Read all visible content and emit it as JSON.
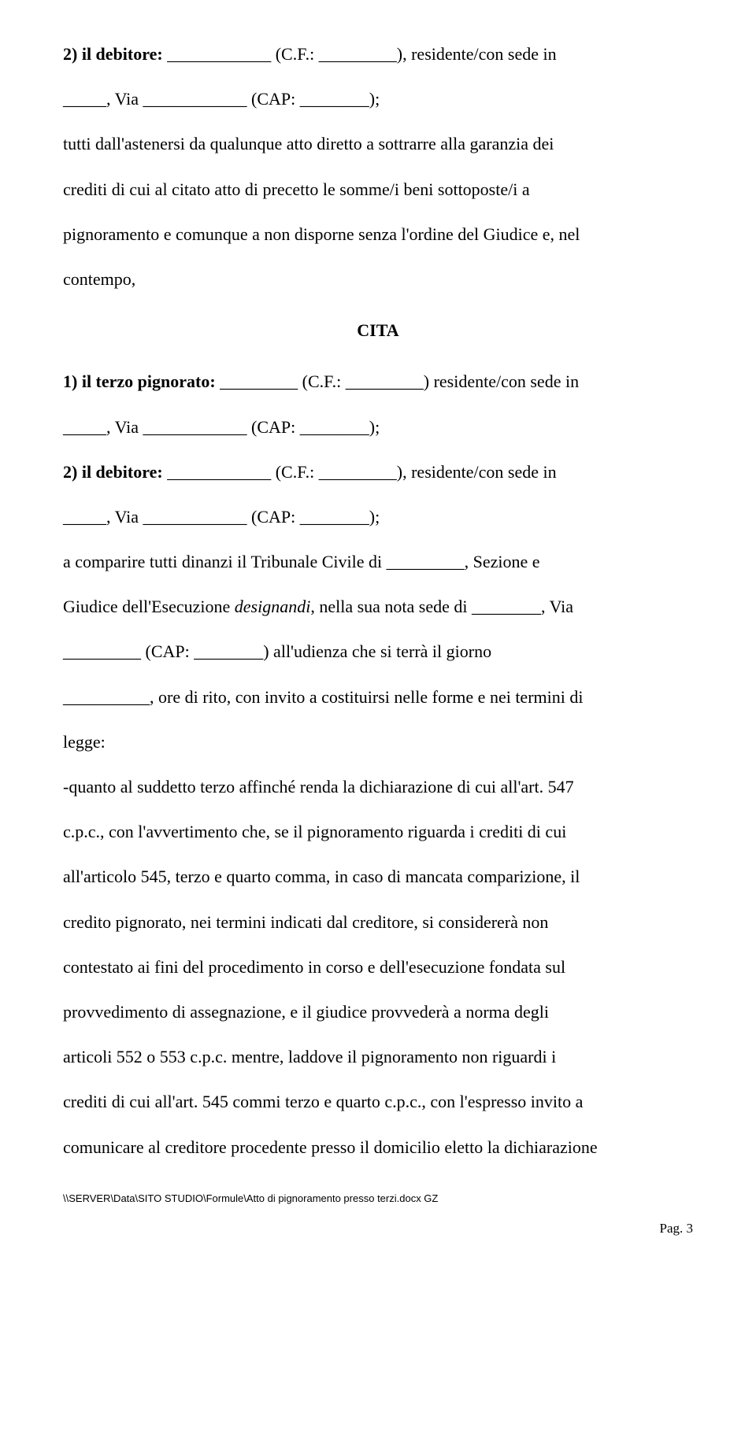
{
  "doc": {
    "line1_a": "2) il debitore:",
    "line1_b": "____________ (C.F.: _________), residente/con sede in",
    "line2": "_____, Via ____________ (CAP: ________);",
    "line3": "tutti dall'astenersi da qualunque atto diretto a sottrarre alla garanzia dei",
    "line4": "crediti di cui al citato atto di precetto le somme/i beni sottoposte/i a",
    "line5": "pignoramento e comunque a non disporne senza l'ordine del Giudice e, nel",
    "line6": "contempo,",
    "cita": "CITA",
    "line7_a": "1) il terzo pignorato:",
    "line7_b": "_________ (C.F.: _________) residente/con sede in",
    "line8": "_____, Via ____________ (CAP: ________);",
    "line9_a": "2) il debitore:",
    "line9_b": "____________ (C.F.: _________), residente/con sede in",
    "line10": "_____, Via ____________ (CAP: ________);",
    "line11": "a comparire tutti dinanzi il Tribunale Civile di _________, Sezione e",
    "line12a": "Giudice dell'Esecuzione ",
    "line12_italic": "designandi",
    "line12b": ", nella sua nota sede di ________, Via",
    "line13": "_________ (CAP: ________) all'udienza che si terrà il giorno",
    "line14": "__________, ore di rito, con invito a costituirsi nelle forme e nei termini di",
    "line15": "legge:",
    "line16": "-quanto al suddetto terzo affinché renda la dichiarazione di cui all'art. 547",
    "line17": "c.p.c., con l'avvertimento che, se il pignoramento riguarda i crediti di cui",
    "line18": "all'articolo 545, terzo e quarto comma, in caso di mancata comparizione, il",
    "line19": "credito pignorato, nei termini indicati dal creditore, si considererà non",
    "line20": "contestato ai fini del procedimento in corso e dell'esecuzione fondata sul",
    "line21": "provvedimento di assegnazione, e il giudice provvederà a norma degli",
    "line22": "articoli 552 o 553 c.p.c. mentre, laddove il pignoramento non riguardi i",
    "line23": "crediti di cui all'art. 545 commi terzo e quarto c.p.c., con l'espresso invito a",
    "line24": "comunicare al creditore procedente presso il domicilio eletto la dichiarazione",
    "footer_path": "\\\\SERVER\\Data\\SITO STUDIO\\Formule\\Atto di pignoramento presso terzi.docx  GZ",
    "page_label": "Pag. 3"
  }
}
